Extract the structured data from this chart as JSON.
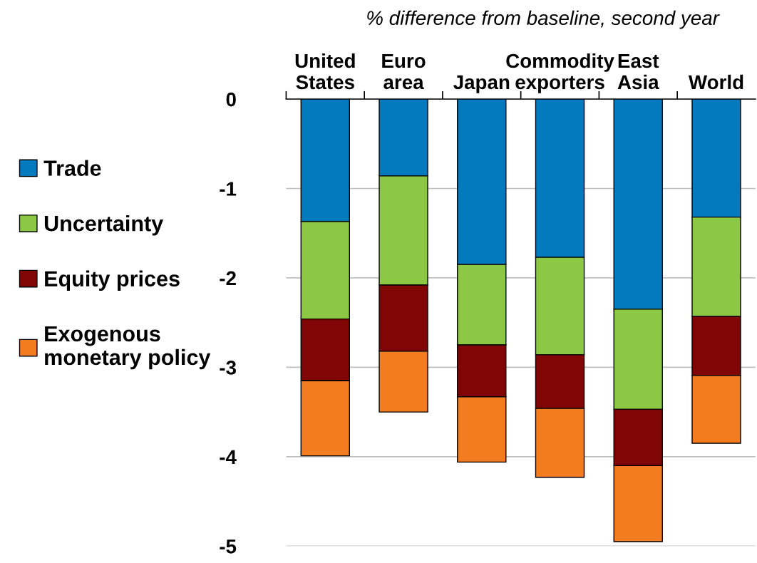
{
  "chart_data": {
    "type": "bar",
    "subtitle": "% difference from baseline, second year",
    "categories": [
      "United\nStates",
      "Euro\narea",
      "Japan",
      "Commodity\nexporters",
      "East\nAsia",
      "World"
    ],
    "stacked": true,
    "series": [
      {
        "name": "Trade",
        "color": "#0379be",
        "values": [
          -1.37,
          -0.86,
          -1.85,
          -1.77,
          -2.35,
          -1.32
        ]
      },
      {
        "name": "Uncertainty",
        "color": "#8cc844",
        "values": [
          -1.09,
          -1.22,
          -0.9,
          -1.09,
          -1.12,
          -1.11
        ]
      },
      {
        "name": "Equity prices",
        "color": "#800505",
        "values": [
          -0.69,
          -0.74,
          -0.58,
          -0.6,
          -0.63,
          -0.66
        ]
      },
      {
        "name": "Exogenous\nmonetary policy",
        "color": "#f47c20",
        "values": [
          -0.84,
          -0.68,
          -0.73,
          -0.77,
          -0.85,
          -0.76
        ]
      }
    ],
    "ylim": [
      -5,
      0
    ],
    "yticks": [
      -5,
      -4,
      -3,
      -2,
      -1,
      0
    ],
    "grid": "y",
    "legend": "left"
  }
}
